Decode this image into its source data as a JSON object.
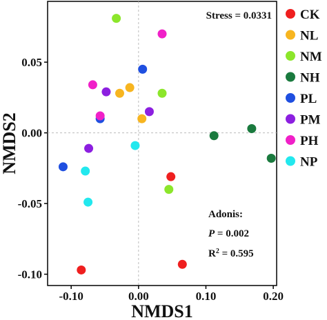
{
  "chart_data": {
    "type": "scatter",
    "title": "",
    "xlabel": "NMDS1",
    "ylabel": "NMDS2",
    "xlim": [
      -0.135,
      0.205
    ],
    "ylim": [
      -0.108,
      0.093
    ],
    "x_ticks": [
      {
        "value": -0.1,
        "label": "-0.10"
      },
      {
        "value": 0.0,
        "label": "0.00"
      },
      {
        "value": 0.1,
        "label": "0.10"
      },
      {
        "value": 0.2,
        "label": "0.20"
      }
    ],
    "y_ticks": [
      {
        "value": 0.05,
        "label": "0.05"
      },
      {
        "value": 0.0,
        "label": "0.00"
      },
      {
        "value": -0.05,
        "label": "-0.05"
      },
      {
        "value": -0.1,
        "label": "-0.10"
      }
    ],
    "reference_lines": {
      "x": 0,
      "y": 0,
      "style": "dashed"
    },
    "grid": false,
    "legend_position": "right-outside",
    "series": [
      {
        "name": "CK",
        "color": "#ef1f1f",
        "points": [
          {
            "x": 0.048,
            "y": -0.031
          },
          {
            "x": -0.085,
            "y": -0.097
          },
          {
            "x": 0.065,
            "y": -0.093
          }
        ]
      },
      {
        "name": "NL",
        "color": "#f7b520",
        "points": [
          {
            "x": -0.028,
            "y": 0.028
          },
          {
            "x": -0.013,
            "y": 0.032
          },
          {
            "x": 0.005,
            "y": 0.01
          }
        ]
      },
      {
        "name": "NM",
        "color": "#8ce62b",
        "points": [
          {
            "x": -0.033,
            "y": 0.081
          },
          {
            "x": 0.035,
            "y": 0.028
          },
          {
            "x": 0.045,
            "y": -0.04
          }
        ]
      },
      {
        "name": "NH",
        "color": "#1a7a3e",
        "points": [
          {
            "x": 0.112,
            "y": -0.002
          },
          {
            "x": 0.168,
            "y": 0.003
          },
          {
            "x": 0.197,
            "y": -0.018
          }
        ]
      },
      {
        "name": "PL",
        "color": "#1f4fe0",
        "points": [
          {
            "x": 0.006,
            "y": 0.045
          },
          {
            "x": -0.057,
            "y": 0.01
          },
          {
            "x": -0.112,
            "y": -0.024
          }
        ]
      },
      {
        "name": "PM",
        "color": "#8c1fe0",
        "points": [
          {
            "x": -0.048,
            "y": 0.029
          },
          {
            "x": 0.016,
            "y": 0.015
          },
          {
            "x": -0.074,
            "y": -0.011
          }
        ]
      },
      {
        "name": "PH",
        "color": "#f020c8",
        "points": [
          {
            "x": 0.035,
            "y": 0.07
          },
          {
            "x": -0.068,
            "y": 0.034
          },
          {
            "x": -0.057,
            "y": 0.012
          }
        ]
      },
      {
        "name": "NP",
        "color": "#22e8ee",
        "points": [
          {
            "x": -0.005,
            "y": -0.009
          },
          {
            "x": -0.079,
            "y": -0.027
          },
          {
            "x": -0.075,
            "y": -0.049
          }
        ]
      }
    ],
    "annotations": {
      "stress": "Stress = 0.0331",
      "adonis_title": "Adonis:",
      "p_symbol": "P",
      "p_value": " = 0.002",
      "r2_symbol": "R",
      "r2_sup": "2",
      "r2_value": " = 0.595"
    }
  }
}
